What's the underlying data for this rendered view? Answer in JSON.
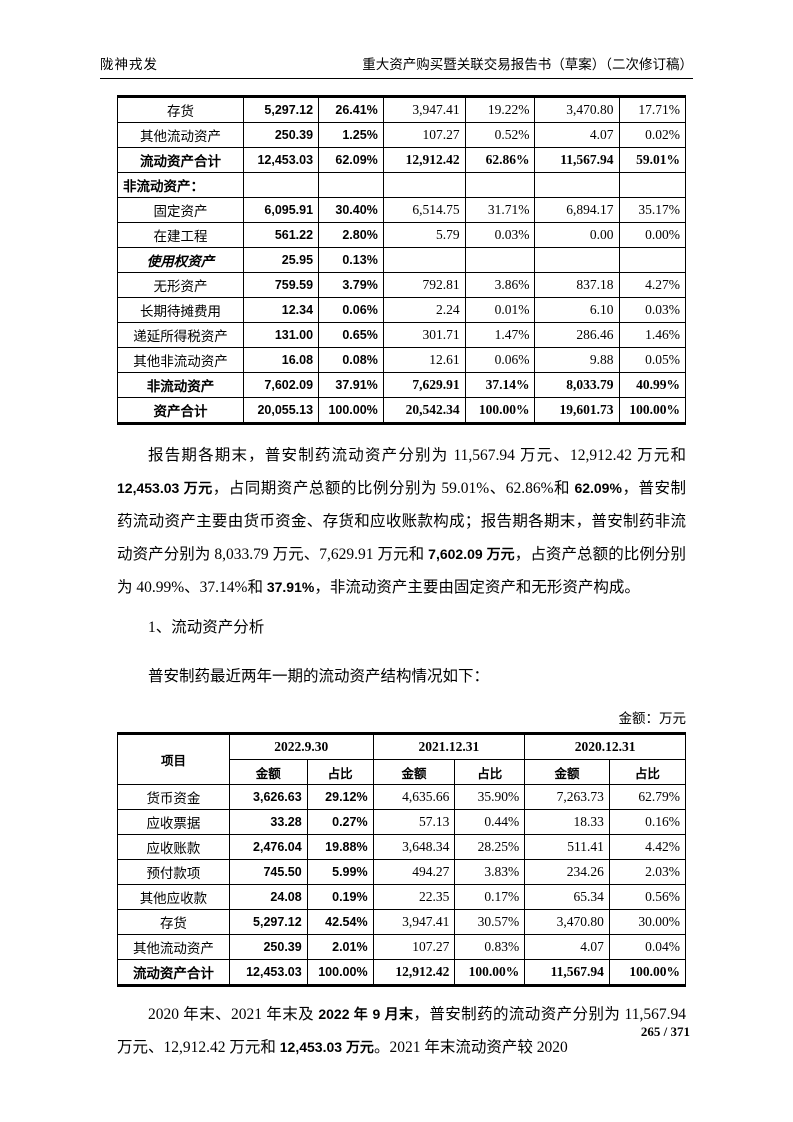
{
  "header": {
    "left": "陇神戎发",
    "right": "重大资产购买暨关联交易报告书（草案）（二次修订稿）"
  },
  "asset_table": {
    "rows": [
      {
        "label": "存货",
        "style": "normal",
        "cells": [
          "5,297.12",
          "26.41%",
          "3,947.41",
          "19.22%",
          "3,470.80",
          "17.71%"
        ]
      },
      {
        "label": "其他流动资产",
        "style": "normal",
        "cells": [
          "250.39",
          "1.25%",
          "107.27",
          "0.52%",
          "4.07",
          "0.02%"
        ]
      },
      {
        "label": "流动资产合计",
        "style": "total",
        "cells": [
          "12,453.03",
          "62.09%",
          "12,912.42",
          "62.86%",
          "11,567.94",
          "59.01%"
        ]
      },
      {
        "label": "非流动资产：",
        "style": "section",
        "cells": [
          "",
          "",
          "",
          "",
          "",
          ""
        ]
      },
      {
        "label": "固定资产",
        "style": "normal",
        "cells": [
          "6,095.91",
          "30.40%",
          "6,514.75",
          "31.71%",
          "6,894.17",
          "35.17%"
        ]
      },
      {
        "label": "在建工程",
        "style": "normal",
        "cells": [
          "561.22",
          "2.80%",
          "5.79",
          "0.03%",
          "0.00",
          "0.00%"
        ]
      },
      {
        "label": "使用权资产",
        "style": "lease",
        "cells": [
          "25.95",
          "0.13%",
          "",
          "",
          "",
          ""
        ]
      },
      {
        "label": "无形资产",
        "style": "normal",
        "cells": [
          "759.59",
          "3.79%",
          "792.81",
          "3.86%",
          "837.18",
          "4.27%"
        ]
      },
      {
        "label": "长期待摊费用",
        "style": "normal",
        "cells": [
          "12.34",
          "0.06%",
          "2.24",
          "0.01%",
          "6.10",
          "0.03%"
        ]
      },
      {
        "label": "递延所得税资产",
        "style": "normal",
        "cells": [
          "131.00",
          "0.65%",
          "301.71",
          "1.47%",
          "286.46",
          "1.46%"
        ]
      },
      {
        "label": "其他非流动资产",
        "style": "normal",
        "cells": [
          "16.08",
          "0.08%",
          "12.61",
          "0.06%",
          "9.88",
          "0.05%"
        ]
      },
      {
        "label": "非流动资产",
        "style": "total",
        "cells": [
          "7,602.09",
          "37.91%",
          "7,629.91",
          "37.14%",
          "8,033.79",
          "40.99%"
        ]
      },
      {
        "label": "资产合计",
        "style": "total",
        "cells": [
          "20,055.13",
          "100.00%",
          "20,542.34",
          "100.00%",
          "19,601.73",
          "100.00%"
        ]
      }
    ]
  },
  "paragraph1_segments": [
    {
      "t": "报告期各期末，普安制药流动资产分别为 11,567.94 万元、12,912.42 万元和 ",
      "b": false
    },
    {
      "t": "12,453.03 万元",
      "b": true
    },
    {
      "t": "，占同期资产总额的比例分别为 59.01%、62.86%和 ",
      "b": false
    },
    {
      "t": "62.09%",
      "b": true
    },
    {
      "t": "，普安制药流动资产主要由货币资金、存货和应收账款构成；报告期各期末，普安制药非流动资产分别为 8,033.79 万元、7,629.91 万元和 ",
      "b": false
    },
    {
      "t": "7,602.09 万元",
      "b": true
    },
    {
      "t": "，占资产总额的比例分别为 40.99%、37.14%和 ",
      "b": false
    },
    {
      "t": "37.91%",
      "b": true
    },
    {
      "t": "，非流动资产主要由固定资产和无形资产构成。",
      "b": false
    }
  ],
  "section_heading": "1、流动资产分析",
  "lead_in": "普安制药最近两年一期的流动资产结构情况如下：",
  "unit_note": "金额：万元",
  "current_assets_table": {
    "col_item": "项目",
    "periods": [
      {
        "label": "2022.9.30"
      },
      {
        "label": "2021.12.31"
      },
      {
        "label": "2020.12.31"
      }
    ],
    "sub_headers": [
      "金额",
      "占比"
    ],
    "rows": [
      {
        "label": "货币资金",
        "style": "normal",
        "cells": [
          "3,626.63",
          "29.12%",
          "4,635.66",
          "35.90%",
          "7,263.73",
          "62.79%"
        ]
      },
      {
        "label": "应收票据",
        "style": "normal",
        "cells": [
          "33.28",
          "0.27%",
          "57.13",
          "0.44%",
          "18.33",
          "0.16%"
        ]
      },
      {
        "label": "应收账款",
        "style": "normal",
        "cells": [
          "2,476.04",
          "19.88%",
          "3,648.34",
          "28.25%",
          "511.41",
          "4.42%"
        ]
      },
      {
        "label": "预付款项",
        "style": "normal",
        "cells": [
          "745.50",
          "5.99%",
          "494.27",
          "3.83%",
          "234.26",
          "2.03%"
        ]
      },
      {
        "label": "其他应收款",
        "style": "normal",
        "cells": [
          "24.08",
          "0.19%",
          "22.35",
          "0.17%",
          "65.34",
          "0.56%"
        ]
      },
      {
        "label": "存货",
        "style": "normal",
        "cells": [
          "5,297.12",
          "42.54%",
          "3,947.41",
          "30.57%",
          "3,470.80",
          "30.00%"
        ]
      },
      {
        "label": "其他流动资产",
        "style": "normal",
        "cells": [
          "250.39",
          "2.01%",
          "107.27",
          "0.83%",
          "4.07",
          "0.04%"
        ]
      },
      {
        "label": "流动资产合计",
        "style": "total",
        "cells": [
          "12,453.03",
          "100.00%",
          "12,912.42",
          "100.00%",
          "11,567.94",
          "100.00%"
        ]
      }
    ]
  },
  "paragraph2_segments": [
    {
      "t": "2020 年末、2021 年末及 ",
      "b": false
    },
    {
      "t": "2022 年 9 月末",
      "b": true
    },
    {
      "t": "，普安制药的流动资产分别为 11,567.94 万元、12,912.42 万元和 ",
      "b": false
    },
    {
      "t": "12,453.03 万元",
      "b": true
    },
    {
      "t": "。2021 年末流动资产较 2020",
      "b": false
    }
  ],
  "footer": {
    "page_number": "265 / 371"
  }
}
